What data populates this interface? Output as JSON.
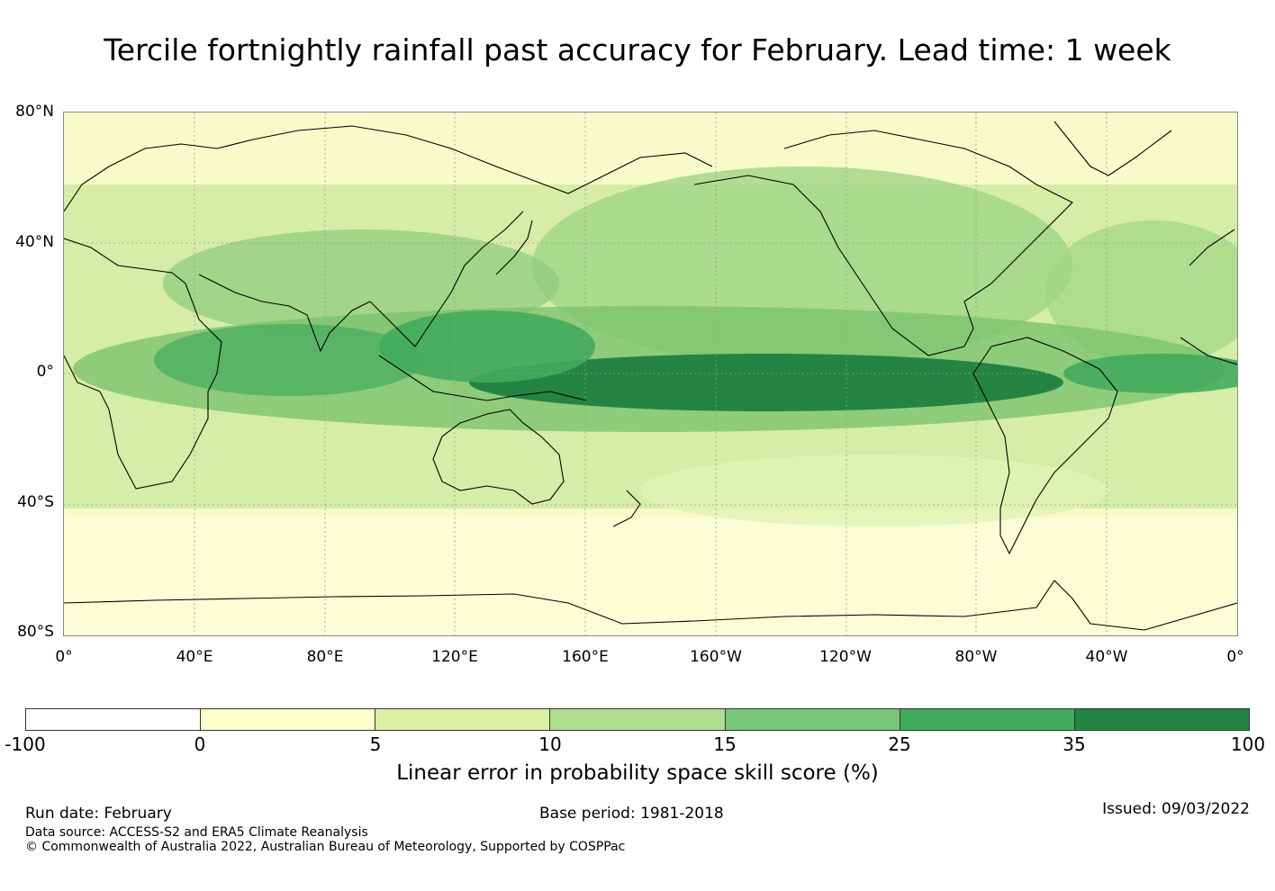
{
  "title": "Tercile fortnightly rainfall past accuracy for February. Lead time: 1 week",
  "map": {
    "lat_labels": [
      "80°N",
      "40°N",
      "0°",
      "40°S",
      "80°S"
    ],
    "lon_labels": [
      "0°",
      "40°E",
      "80°E",
      "120°E",
      "160°E",
      "160°W",
      "120°W",
      "80°W",
      "40°W",
      "0°"
    ]
  },
  "colorbar": {
    "ticks": [
      "-100",
      "0",
      "5",
      "10",
      "15",
      "25",
      "35",
      "100"
    ],
    "colors": [
      "#ffffff",
      "#ffffcc",
      "#d9f0a3",
      "#addd8e",
      "#78c679",
      "#41ab5d",
      "#238443"
    ],
    "title": "Linear error in probability space skill score (%)"
  },
  "footer": {
    "run_date": "Run date: February",
    "base_period": "Base period: 1981-2018",
    "issued": "Issued: 09/03/2022",
    "data_source": "Data source: ACCESS-S2 and ERA5 Climate Reanalysis",
    "copyright": "© Commonwealth of Australia 2022, Australian Bureau of Meteorology, Supported by COSPPac"
  }
}
